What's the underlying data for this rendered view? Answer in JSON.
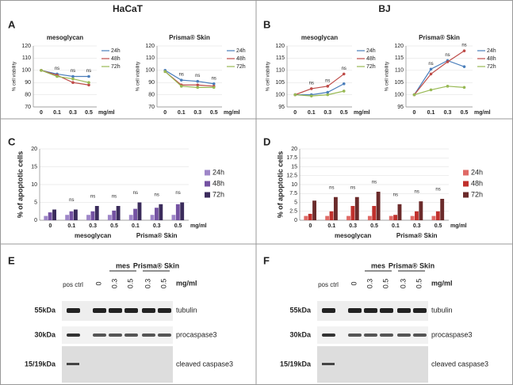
{
  "headers": [
    "HaCaT",
    "BJ"
  ],
  "panel_letters": [
    "A",
    "B",
    "C",
    "D",
    "E",
    "F"
  ],
  "chart_data": [
    {
      "type": "line",
      "title": "mesoglycan",
      "ylabel": "% cell viability",
      "xunit": "mg/ml",
      "categories": [
        "0",
        "0.1",
        "0.3",
        "0.5"
      ],
      "ylim": [
        70,
        120
      ],
      "yticks": [
        70,
        80,
        90,
        100,
        110,
        120
      ],
      "series": [
        {
          "name": "24h",
          "color": "#4a7ebb",
          "values": [
            100,
            97,
            95,
            95
          ]
        },
        {
          "name": "48h",
          "color": "#be4b48",
          "values": [
            100,
            96,
            90,
            88
          ]
        },
        {
          "name": "72h",
          "color": "#98b954",
          "values": [
            100,
            95,
            93,
            90
          ]
        }
      ],
      "annotations": [
        null,
        "ns",
        "ns",
        "ns"
      ]
    },
    {
      "type": "line",
      "title": "Prisma® Skin",
      "ylabel": "% cell viability",
      "xunit": "mg/ml",
      "categories": [
        "0",
        "0.1",
        "0.3",
        "0.5"
      ],
      "ylim": [
        70,
        120
      ],
      "yticks": [
        70,
        80,
        90,
        100,
        110,
        120
      ],
      "series": [
        {
          "name": "24h",
          "color": "#4a7ebb",
          "values": [
            100,
            92,
            91,
            89
          ]
        },
        {
          "name": "48h",
          "color": "#be4b48",
          "values": [
            99,
            88,
            88,
            87
          ]
        },
        {
          "name": "72h",
          "color": "#98b954",
          "values": [
            99,
            87,
            86,
            86
          ]
        }
      ],
      "annotations": [
        null,
        "ns",
        "ns",
        "ns"
      ]
    },
    {
      "type": "line",
      "title": "mesoglycan",
      "ylabel": "% cell viability",
      "xunit": "mg/ml",
      "categories": [
        "0",
        "0.1",
        "0.3",
        "0.5"
      ],
      "ylim": [
        95,
        120
      ],
      "yticks": [
        95,
        100,
        105,
        110,
        115,
        120
      ],
      "series": [
        {
          "name": "24h",
          "color": "#4a7ebb",
          "values": [
            100,
            100,
            101,
            104.5
          ]
        },
        {
          "name": "48h",
          "color": "#be4b48",
          "values": [
            100,
            102.5,
            103.5,
            108.5
          ]
        },
        {
          "name": "72h",
          "color": "#98b954",
          "values": [
            100,
            99.5,
            100,
            101.5
          ]
        }
      ],
      "annotations": [
        null,
        "ns",
        "ns",
        "ns"
      ]
    },
    {
      "type": "line",
      "title": "Prisma® Skin",
      "ylabel": "% cell viability",
      "xunit": "mg/ml",
      "categories": [
        "0",
        "0.1",
        "0.3",
        "0.5"
      ],
      "ylim": [
        95,
        120
      ],
      "yticks": [
        95,
        100,
        105,
        110,
        115,
        120
      ],
      "series": [
        {
          "name": "24h",
          "color": "#4a7ebb",
          "values": [
            100,
            110.5,
            114,
            111.5
          ]
        },
        {
          "name": "48h",
          "color": "#be4b48",
          "values": [
            100,
            108.5,
            113.5,
            118
          ]
        },
        {
          "name": "72h",
          "color": "#98b954",
          "values": [
            100,
            102,
            103.5,
            103
          ]
        }
      ],
      "annotations": [
        null,
        "ns",
        "ns",
        "ns"
      ]
    },
    {
      "type": "bar",
      "ylabel": "% of apoptotic cells",
      "xunit": "mg/ml",
      "categories": [
        "0",
        "0.1",
        "0.3",
        "0.5",
        "0.1",
        "0.3",
        "0.5"
      ],
      "group_labels": [
        null,
        null,
        "mesoglycan",
        null,
        null,
        "Prisma® Skin",
        null
      ],
      "ylim": [
        0,
        20
      ],
      "yticks": [
        0,
        5,
        10,
        15,
        20
      ],
      "series": [
        {
          "name": "24h",
          "color": "#9e86c8",
          "values": [
            1.2,
            1.5,
            1.5,
            1.5,
            1.5,
            1.5,
            1.5
          ]
        },
        {
          "name": "48h",
          "color": "#7452a2",
          "values": [
            2.2,
            2.5,
            2.5,
            2.7,
            3.2,
            3.5,
            4.5
          ]
        },
        {
          "name": "72h",
          "color": "#3b2c5c",
          "values": [
            3,
            3,
            4,
            4,
            5,
            4.5,
            5
          ]
        }
      ],
      "annotations": [
        null,
        "ns",
        "ns",
        "ns",
        "ns",
        "ns",
        "ns"
      ]
    },
    {
      "type": "bar",
      "ylabel": "% of apoptotic cells",
      "xunit": "mg/ml",
      "categories": [
        "0",
        "0.1",
        "0.3",
        "0.5",
        "0.1",
        "0.3",
        "0.5"
      ],
      "group_labels": [
        null,
        null,
        "mesoglycan",
        null,
        null,
        "Prisma® Skin",
        null
      ],
      "ylim": [
        0,
        20
      ],
      "yticks": [
        0,
        2.5,
        5,
        7.5,
        10,
        12.5,
        15,
        17.5,
        20
      ],
      "series": [
        {
          "name": "24h",
          "color": "#e06a66",
          "values": [
            1.2,
            1.2,
            1.2,
            1.2,
            1.2,
            1.2,
            1.2
          ]
        },
        {
          "name": "48h",
          "color": "#c0302c",
          "values": [
            1.8,
            2.5,
            4,
            4,
            1.5,
            2.5,
            2.5
          ]
        },
        {
          "name": "72h",
          "color": "#6b2b2b",
          "values": [
            5.5,
            6.5,
            6.5,
            8,
            4.5,
            5.3,
            6
          ]
        }
      ],
      "annotations": [
        null,
        "ns",
        "ns",
        "ns",
        "ns",
        "ns",
        "ns"
      ]
    }
  ],
  "blots": [
    {
      "lanes": [
        "pos ctrl",
        "0",
        "0.3",
        "0.5",
        "0.3",
        "0.5"
      ],
      "groups": [
        "mes",
        "Prisma® Skin"
      ],
      "unit": "mg/ml",
      "rows": [
        {
          "size": "55kDa",
          "name": "tubulin"
        },
        {
          "size": "30kDa",
          "name": "procaspase3"
        },
        {
          "size": "15/19kDa",
          "name": "cleaved caspase3"
        }
      ]
    },
    {
      "lanes": [
        "pos ctrl",
        "0",
        "0.3",
        "0.5",
        "0.3",
        "0.5"
      ],
      "groups": [
        "mes",
        "Prisma® Skin"
      ],
      "unit": "mg/ml",
      "rows": [
        {
          "size": "55kDa",
          "name": "tubulin"
        },
        {
          "size": "30kDa",
          "name": "procaspase3"
        },
        {
          "size": "15/19kDa",
          "name": "cleaved caspase3"
        }
      ]
    }
  ]
}
